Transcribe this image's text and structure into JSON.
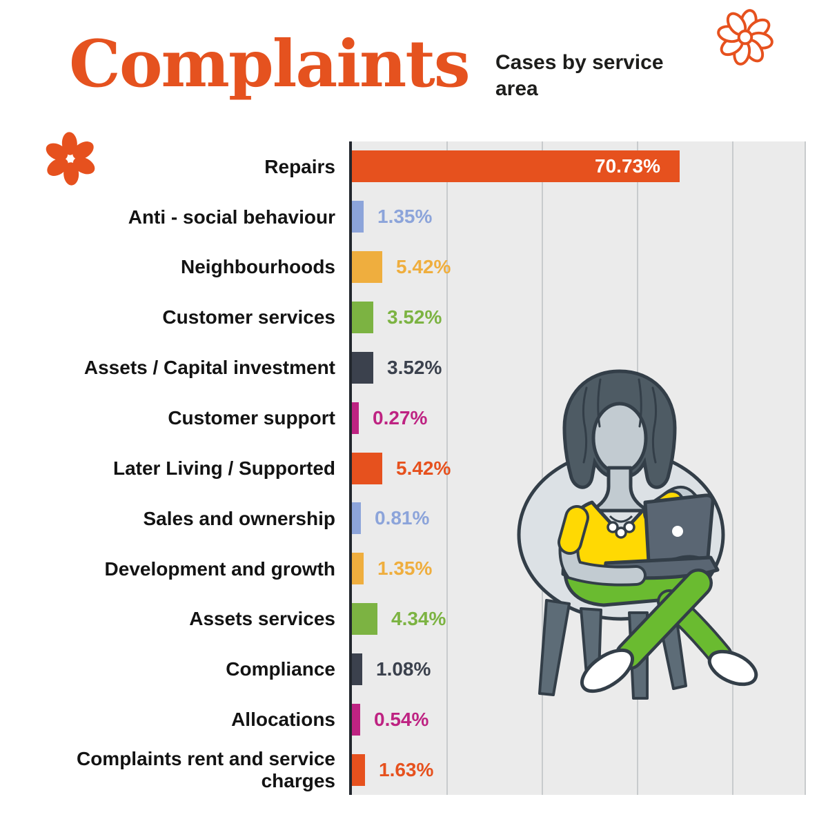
{
  "header": {
    "title": "Complaints",
    "subtitle": "Cases by service area"
  },
  "accent_color": "#E5521F",
  "chart_data": {
    "type": "bar",
    "orientation": "horizontal",
    "title": "Cases by service area",
    "categories": [
      "Repairs",
      "Anti - social behaviour",
      "Neighbourhoods",
      "Customer services",
      "Assets / Capital investment",
      "Customer support",
      "Later Living / Supported",
      "Sales and ownership",
      "Development and growth",
      "Assets services",
      "Compliance",
      "Allocations",
      "Complaints rent and service charges"
    ],
    "values": [
      70.73,
      1.35,
      5.42,
      3.52,
      3.52,
      0.27,
      5.42,
      0.81,
      1.35,
      4.34,
      1.08,
      0.54,
      1.63
    ],
    "value_labels": [
      "70.73%",
      "1.35%",
      "5.42%",
      "3.52%",
      "3.52%",
      "0.27%",
      "5.42%",
      "0.81%",
      "1.35%",
      "4.34%",
      "1.08%",
      "0.54%",
      "1.63%"
    ],
    "bar_colors": [
      "#E6511E",
      "#8CA4DA",
      "#EFAE3E",
      "#7CB342",
      "#3B414D",
      "#BE2382",
      "#E6511E",
      "#8CA4DA",
      "#EFAE3E",
      "#7CB342",
      "#3B414D",
      "#BE2382",
      "#E6511E"
    ],
    "value_label_colors": [
      "#FFFFFF",
      "#8CA4DA",
      "#EFAE3E",
      "#7CB342",
      "#3B414D",
      "#BE2382",
      "#E6511E",
      "#8CA4DA",
      "#EFAE3E",
      "#7CB342",
      "#3B414D",
      "#BE2382",
      "#E6511E"
    ],
    "value_label_position": "outside right of bar; first bar label inside, right-aligned, white",
    "xlim": [
      0,
      97
    ],
    "grid": "vertical gridlines on light-gray panel",
    "plot_background": "#EBEBEB",
    "gridline_color": "#C8CBCD",
    "axis_color": "#22272E",
    "legend": "none"
  },
  "decorations": {
    "flower_outline_icon": "eight-petal outlined daisy, orange stroke, top right",
    "flower_solid_icon": "six-petal solid orange flower, left under title",
    "flower_color": "#E6511E"
  },
  "illustration": {
    "description": "woman with curly dark hair sitting on a round grey chair, laptop on her lap, legs crossed",
    "colors": {
      "outline": "#333E48",
      "hair": "#4E5B64",
      "skin": "#C2CBD1",
      "shirt": "#FFD903",
      "pants": "#6ABB30",
      "laptop": "#5A6673",
      "chair": "#DCE1E5",
      "chair_legs": "#5D6C77",
      "shoes": "#FFFFFF"
    }
  }
}
